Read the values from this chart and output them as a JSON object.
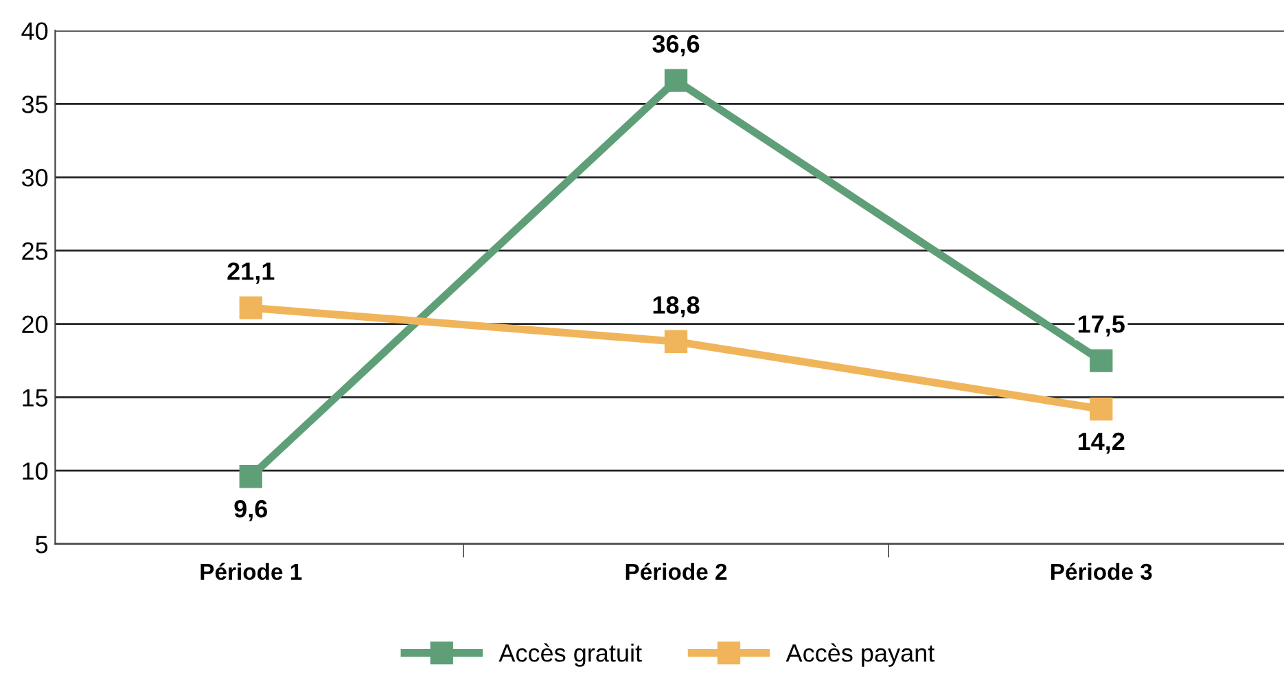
{
  "chart_data": {
    "type": "line",
    "categories": [
      "Période 1",
      "Période 2",
      "Période 3"
    ],
    "series": [
      {
        "name": "Accès gratuit",
        "color": "#5f9f78",
        "values": [
          9.6,
          36.6,
          17.5
        ],
        "value_labels": [
          "9,6",
          "36,6",
          "17,5"
        ]
      },
      {
        "name": "Accès payant",
        "color": "#f0b55a",
        "values": [
          21.1,
          18.8,
          14.2
        ],
        "value_labels": [
          "21,1",
          "18,8",
          "14,2"
        ]
      }
    ],
    "ylim": [
      5,
      40
    ],
    "yticks": [
      5,
      10,
      15,
      20,
      25,
      30,
      35,
      40
    ],
    "grid": "y",
    "legend": "bottom",
    "marker": "square",
    "line_style": "solid"
  }
}
